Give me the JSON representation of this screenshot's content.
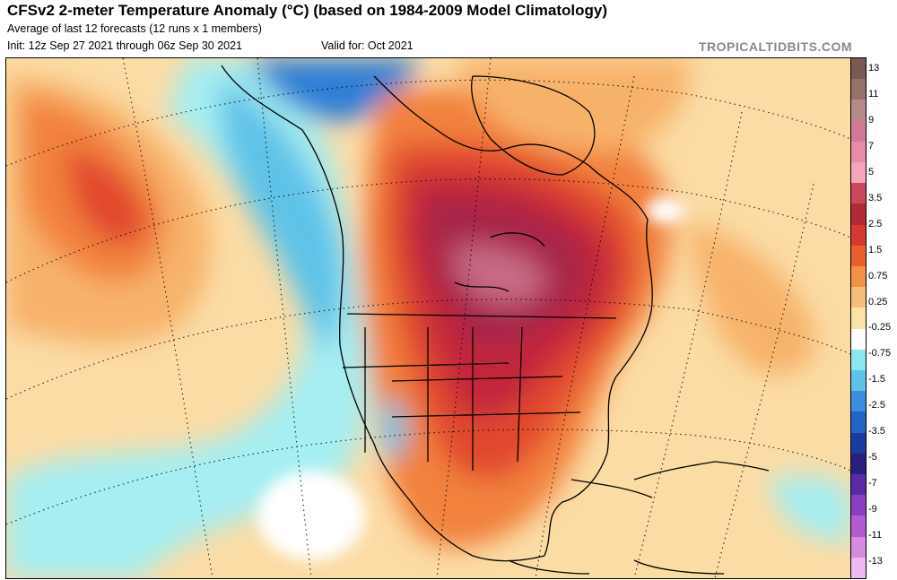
{
  "header": {
    "title": "CFSv2 2-meter Temperature Anomaly (°C) (based on 1984-2009 Model Climatology)",
    "subtitle": "Average of last 12 forecasts (12 runs x 1 members)",
    "init": "Init: 12z Sep 27 2021 through 06z Sep 30 2021",
    "valid": "Valid for: Oct 2021",
    "source": "TROPICALTIDBITS.COM"
  },
  "colorbar": {
    "labels": [
      "13",
      "11",
      "9",
      "7",
      "5",
      "3.5",
      "2.5",
      "1.5",
      "0.75",
      "0.25",
      "-0.25",
      "-0.75",
      "-1.5",
      "-2.5",
      "-3.5",
      "-5",
      "-7",
      "-9",
      "-11",
      "-13"
    ],
    "colors": [
      "#7a5a52",
      "#95716a",
      "#b58a8a",
      "#d07a98",
      "#e88aa8",
      "#f4a5bd",
      "#c8495e",
      "#b02a38",
      "#d43a32",
      "#e8602e",
      "#f19246",
      "#f7bd7a",
      "#fbe3a8",
      "#ffffff",
      "#8be6ee",
      "#5fc2e8",
      "#3b8ede",
      "#2563c4",
      "#1c3b9e",
      "#2a1f7a",
      "#5a2aa6",
      "#8a3ec0",
      "#b25ad0",
      "#d68ae0",
      "#f0b8f0"
    ]
  },
  "map": {
    "colors": {
      "warm_extreme": "#c76a84",
      "warm_very_high": "#a8284a",
      "warm_high": "#c3263a",
      "warm_med": "#e1492f",
      "warm_low": "#f2813c",
      "warm_light": "#f7b26a",
      "warm_faint": "#fbdca5",
      "neutral": "#ffffff",
      "cool_light": "#a6eef2",
      "cool_med": "#5ec3e8",
      "cool_strong": "#2d7fd6",
      "cool_deep": "#1f4fae"
    }
  }
}
